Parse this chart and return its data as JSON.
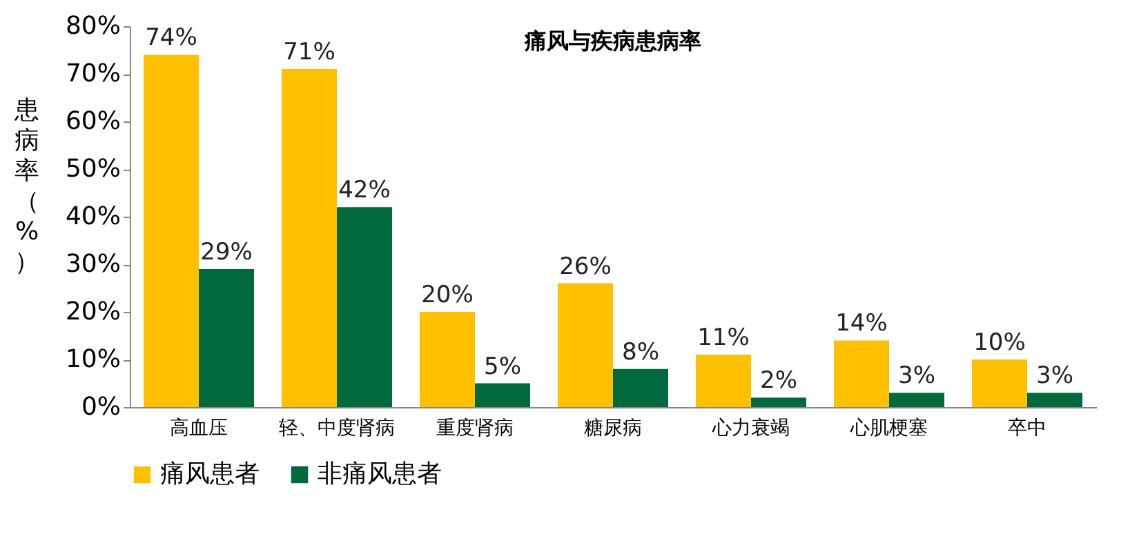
{
  "chart_data": {
    "type": "bar",
    "title": "痛风与疾病患病率",
    "ylabel": "患病率（%）",
    "categories": [
      "高血压",
      "轻、中度肾病",
      "重度肾病",
      "糖尿病",
      "心力衰竭",
      "心肌梗塞",
      "卒中"
    ],
    "series": [
      {
        "name": "痛风患者",
        "color": "#ffc000",
        "values": [
          74,
          71,
          20,
          26,
          11,
          14,
          10
        ],
        "value_labels": [
          "74%",
          "71%",
          "20%",
          "26%",
          "11%",
          "14%",
          "10%"
        ]
      },
      {
        "name": "非痛风患者",
        "color": "#00693e",
        "values": [
          29,
          42,
          5,
          8,
          2,
          3,
          3
        ],
        "value_labels": [
          "29%",
          "42%",
          "5%",
          "8%",
          "2%",
          "3%",
          "3%"
        ]
      }
    ],
    "ylim": [
      0,
      80
    ],
    "yticks": [
      {
        "value": 0,
        "label": "0%"
      },
      {
        "value": 10,
        "label": "10%"
      },
      {
        "value": 20,
        "label": "20%"
      },
      {
        "value": 30,
        "label": "30%"
      },
      {
        "value": 40,
        "label": "40%"
      },
      {
        "value": 50,
        "label": "50%"
      },
      {
        "value": 60,
        "label": "60%"
      },
      {
        "value": 70,
        "label": "70%"
      },
      {
        "value": 80,
        "label": "80%"
      }
    ],
    "grid": false,
    "legend": "bottom"
  }
}
